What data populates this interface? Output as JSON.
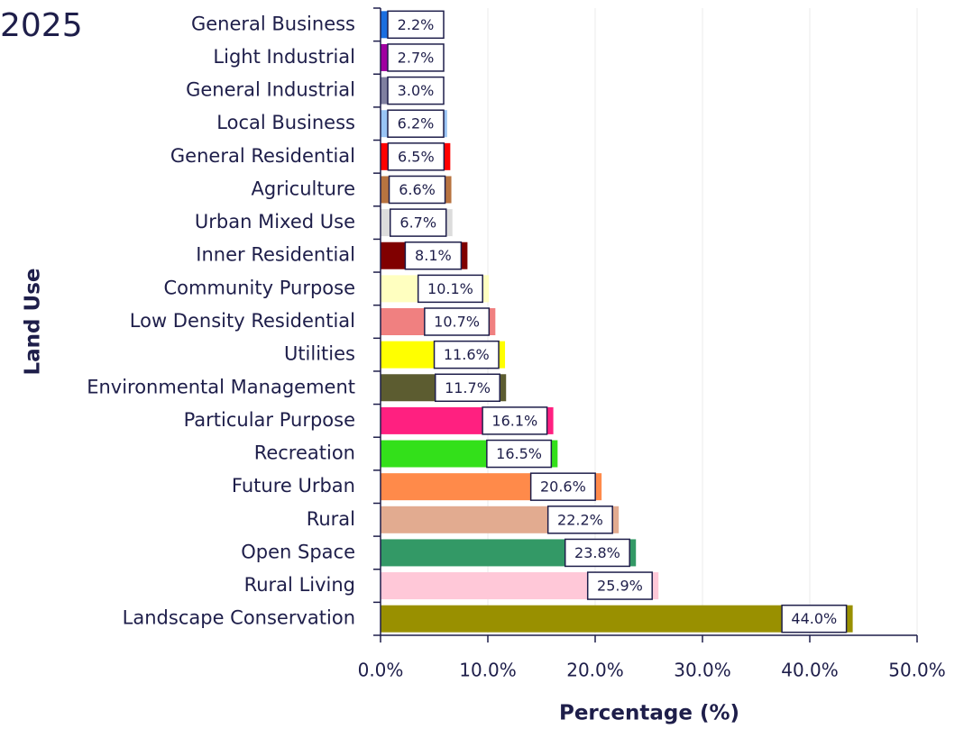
{
  "chart_data": {
    "type": "hbar",
    "title": "2025",
    "xlabel": "Percentage (%)",
    "ylabel": "Land Use",
    "categories": [
      "General Business",
      "Light Industrial",
      "General Industrial",
      "Local Business",
      "General Residential",
      "Agriculture",
      "Urban Mixed Use",
      "Inner Residential",
      "Community Purpose",
      "Low Density Residential",
      "Utilities",
      "Environmental Management",
      "Particular Purpose",
      "Recreation",
      "Future Urban",
      "Rural",
      "Open Space",
      "Rural Living",
      "Landscape Conservation"
    ],
    "values": [
      2.2,
      2.7,
      3.0,
      6.2,
      6.5,
      6.6,
      6.7,
      8.1,
      10.1,
      10.7,
      11.6,
      11.7,
      16.1,
      16.5,
      20.6,
      22.2,
      23.8,
      25.9,
      44.0
    ],
    "value_labels": [
      "2.2%",
      "2.7%",
      "3.0%",
      "6.2%",
      "6.5%",
      "6.6%",
      "6.7%",
      "8.1%",
      "10.1%",
      "10.7%",
      "11.6%",
      "11.7%",
      "16.1%",
      "16.5%",
      "20.6%",
      "22.2%",
      "23.8%",
      "25.9%",
      "44.0%"
    ],
    "colors": [
      "#1a6ee0",
      "#a000a0",
      "#8080a0",
      "#99c4f5",
      "#ff0000",
      "#b87340",
      "#dcdcdc",
      "#800000",
      "#ffffc0",
      "#f08080",
      "#ffff00",
      "#5c5c30",
      "#ff2080",
      "#33e01a",
      "#ff8a4a",
      "#e2ab90",
      "#339966",
      "#ffc8d8",
      "#999000"
    ],
    "xlim": [
      0,
      50
    ],
    "xticks": [
      {
        "value": 0,
        "label": "0.0%"
      },
      {
        "value": 10,
        "label": "10.0%"
      },
      {
        "value": 20,
        "label": "20.0%"
      },
      {
        "value": 30,
        "label": "30.0%"
      },
      {
        "value": 40,
        "label": "40.0%"
      },
      {
        "value": 50,
        "label": "50.0%"
      }
    ],
    "grid": true
  }
}
